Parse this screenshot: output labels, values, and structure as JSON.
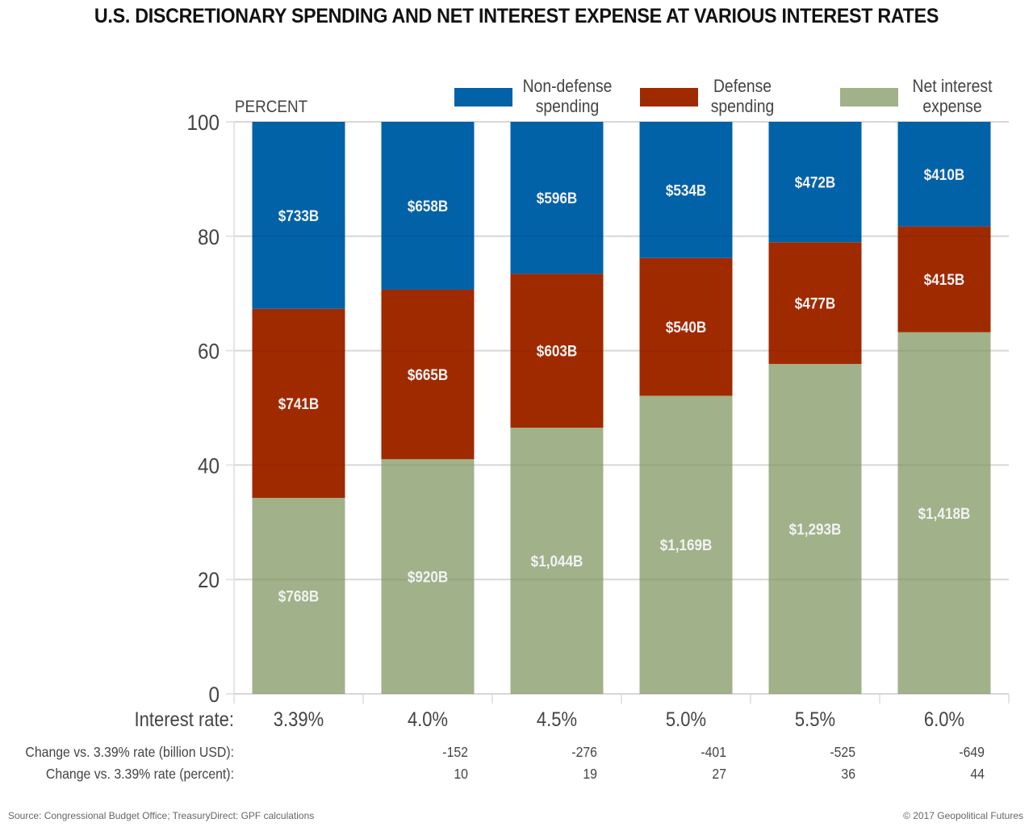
{
  "title": "U.S. DISCRETIONARY SPENDING AND NET INTEREST EXPENSE AT VARIOUS INTEREST RATES",
  "source": "Source: Congressional Budget Office; TreasuryDirect: GPF calculations",
  "copyright": "© 2017 Geopolitical Futures",
  "colors": {
    "non_defense": "#0262a7",
    "defense": "#a02a00",
    "net_interest": "#a1b189",
    "grid": "#e5e5e5",
    "text": "#444444"
  },
  "chart_data": {
    "type": "bar",
    "stacked": true,
    "normalized_percent": true,
    "title": "U.S. DISCRETIONARY SPENDING AND NET INTEREST EXPENSE AT VARIOUS INTEREST RATES",
    "xlabel": "Interest rate:",
    "ylabel": "PERCENT",
    "ylim": [
      0,
      100
    ],
    "yticks": [
      0,
      20,
      40,
      60,
      80,
      100
    ],
    "grid": true,
    "legend_position": "top-right",
    "categories": [
      "3.39%",
      "4.0%",
      "4.5%",
      "5.0%",
      "5.5%",
      "6.0%"
    ],
    "series": [
      {
        "name": "Net interest expense",
        "key": "net_interest",
        "values": [
          768,
          920,
          1044,
          1169,
          1293,
          1418
        ],
        "labels": [
          "$768B",
          "$920B",
          "$1,044B",
          "$1,169B",
          "$1,293B",
          "$1,418B"
        ]
      },
      {
        "name": "Defense spending",
        "key": "defense",
        "values": [
          741,
          665,
          603,
          540,
          477,
          415
        ],
        "labels": [
          "$741B",
          "$665B",
          "$603B",
          "$540B",
          "$477B",
          "$415B"
        ]
      },
      {
        "name": "Non-defense spending",
        "key": "non_defense",
        "values": [
          733,
          658,
          596,
          534,
          472,
          410
        ],
        "labels": [
          "$733B",
          "$658B",
          "$596B",
          "$534B",
          "$472B",
          "$410B"
        ]
      }
    ],
    "legend": [
      {
        "key": "non_defense",
        "line1": "Non-defense",
        "line2": "spending"
      },
      {
        "key": "defense",
        "line1": "Defense",
        "line2": "spending"
      },
      {
        "key": "net_interest",
        "line1": "Net interest",
        "line2": "expense"
      }
    ],
    "table_rows": [
      {
        "label": "Change vs. 3.39% rate (billion USD):",
        "values": [
          "",
          "-152",
          "-276",
          "-401",
          "-525",
          "-649"
        ]
      },
      {
        "label": "Change vs. 3.39% rate (percent):",
        "values": [
          "",
          "10",
          "19",
          "27",
          "36",
          "44"
        ]
      }
    ]
  }
}
